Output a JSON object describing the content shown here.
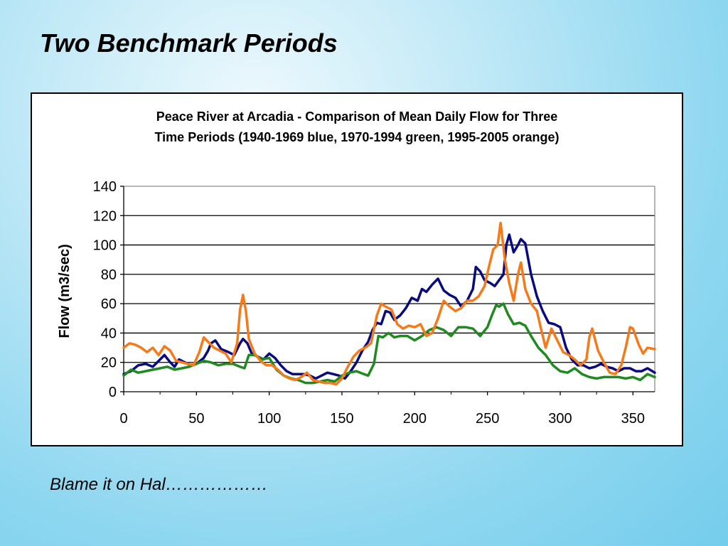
{
  "slide": {
    "title": "Two Benchmark Periods",
    "caption": "Blame it on Hal………………"
  },
  "colors": {
    "blue": "#0a0a80",
    "green": "#1f8a1f",
    "orange": "#f57a1a",
    "gridline": "#000000"
  },
  "chart_data": {
    "type": "line",
    "title_lines": [
      "Peace River at Arcadia - Comparison of Mean Daily Flow for Three",
      "Time Periods (1940-1969 blue, 1970-1994 green, 1995-2005 orange)"
    ],
    "xlabel": "",
    "ylabel": "Flow (m3/sec)",
    "xlim": [
      0,
      365
    ],
    "ylim": [
      0,
      140
    ],
    "xticks": [
      0,
      50,
      100,
      150,
      200,
      250,
      300,
      350
    ],
    "yticks": [
      0,
      20,
      40,
      60,
      80,
      100,
      120,
      140
    ],
    "grid": "horizontal",
    "legend": "none",
    "series": [
      {
        "color_key": "blue",
        "points": [
          [
            0,
            12
          ],
          [
            5,
            14
          ],
          [
            10,
            18
          ],
          [
            15,
            19
          ],
          [
            20,
            17
          ],
          [
            25,
            22
          ],
          [
            28,
            25
          ],
          [
            32,
            20
          ],
          [
            35,
            17
          ],
          [
            38,
            22
          ],
          [
            42,
            20
          ],
          [
            46,
            18
          ],
          [
            50,
            19
          ],
          [
            55,
            23
          ],
          [
            58,
            28
          ],
          [
            60,
            33
          ],
          [
            63,
            35
          ],
          [
            67,
            29
          ],
          [
            72,
            27
          ],
          [
            76,
            25
          ],
          [
            80,
            33
          ],
          [
            82,
            36
          ],
          [
            85,
            33
          ],
          [
            88,
            26
          ],
          [
            92,
            24
          ],
          [
            96,
            22
          ],
          [
            100,
            26
          ],
          [
            104,
            23
          ],
          [
            108,
            18
          ],
          [
            112,
            14
          ],
          [
            116,
            12
          ],
          [
            120,
            12
          ],
          [
            124,
            12
          ],
          [
            128,
            11
          ],
          [
            132,
            9
          ],
          [
            136,
            11
          ],
          [
            140,
            13
          ],
          [
            144,
            12
          ],
          [
            148,
            11
          ],
          [
            152,
            9
          ],
          [
            156,
            14
          ],
          [
            160,
            20
          ],
          [
            164,
            28
          ],
          [
            168,
            34
          ],
          [
            171,
            42
          ],
          [
            174,
            47
          ],
          [
            177,
            46
          ],
          [
            180,
            55
          ],
          [
            183,
            54
          ],
          [
            186,
            49
          ],
          [
            190,
            52
          ],
          [
            194,
            57
          ],
          [
            198,
            64
          ],
          [
            202,
            62
          ],
          [
            205,
            70
          ],
          [
            208,
            68
          ],
          [
            212,
            73
          ],
          [
            216,
            77
          ],
          [
            220,
            69
          ],
          [
            224,
            66
          ],
          [
            228,
            64
          ],
          [
            232,
            58
          ],
          [
            236,
            62
          ],
          [
            240,
            70
          ],
          [
            242,
            85
          ],
          [
            245,
            82
          ],
          [
            248,
            76
          ],
          [
            252,
            74
          ],
          [
            255,
            72
          ],
          [
            258,
            76
          ],
          [
            261,
            80
          ],
          [
            263,
            100
          ],
          [
            265,
            107
          ],
          [
            268,
            95
          ],
          [
            271,
            100
          ],
          [
            273,
            104
          ],
          [
            276,
            101
          ],
          [
            280,
            80
          ],
          [
            284,
            65
          ],
          [
            288,
            55
          ],
          [
            292,
            47
          ],
          [
            296,
            46
          ],
          [
            300,
            44
          ],
          [
            304,
            30
          ],
          [
            308,
            22
          ],
          [
            312,
            18
          ],
          [
            316,
            18
          ],
          [
            320,
            16
          ],
          [
            324,
            17
          ],
          [
            328,
            19
          ],
          [
            332,
            17
          ],
          [
            336,
            16
          ],
          [
            340,
            14
          ],
          [
            344,
            16
          ],
          [
            348,
            16
          ],
          [
            352,
            14
          ],
          [
            356,
            14
          ],
          [
            360,
            16
          ],
          [
            365,
            13
          ]
        ]
      },
      {
        "color_key": "green",
        "points": [
          [
            0,
            11
          ],
          [
            5,
            15
          ],
          [
            10,
            13
          ],
          [
            15,
            14
          ],
          [
            20,
            15
          ],
          [
            25,
            16
          ],
          [
            30,
            17
          ],
          [
            35,
            15
          ],
          [
            40,
            16
          ],
          [
            45,
            17
          ],
          [
            50,
            19
          ],
          [
            55,
            21
          ],
          [
            60,
            20
          ],
          [
            65,
            18
          ],
          [
            70,
            19
          ],
          [
            75,
            19
          ],
          [
            80,
            17
          ],
          [
            83,
            16
          ],
          [
            86,
            25
          ],
          [
            90,
            25
          ],
          [
            95,
            22
          ],
          [
            100,
            23
          ],
          [
            105,
            15
          ],
          [
            110,
            11
          ],
          [
            115,
            9
          ],
          [
            120,
            8
          ],
          [
            125,
            6
          ],
          [
            130,
            6
          ],
          [
            135,
            7
          ],
          [
            140,
            8
          ],
          [
            145,
            7
          ],
          [
            150,
            11
          ],
          [
            155,
            13
          ],
          [
            160,
            14
          ],
          [
            165,
            12
          ],
          [
            168,
            11
          ],
          [
            172,
            19
          ],
          [
            175,
            38
          ],
          [
            178,
            37
          ],
          [
            182,
            40
          ],
          [
            186,
            37
          ],
          [
            190,
            38
          ],
          [
            195,
            38
          ],
          [
            200,
            35
          ],
          [
            205,
            38
          ],
          [
            210,
            42
          ],
          [
            215,
            44
          ],
          [
            220,
            42
          ],
          [
            225,
            38
          ],
          [
            230,
            44
          ],
          [
            235,
            44
          ],
          [
            240,
            43
          ],
          [
            245,
            38
          ],
          [
            250,
            44
          ],
          [
            253,
            52
          ],
          [
            256,
            59
          ],
          [
            258,
            58
          ],
          [
            261,
            60
          ],
          [
            264,
            53
          ],
          [
            268,
            46
          ],
          [
            272,
            47
          ],
          [
            276,
            45
          ],
          [
            280,
            38
          ],
          [
            285,
            30
          ],
          [
            290,
            25
          ],
          [
            295,
            18
          ],
          [
            300,
            14
          ],
          [
            305,
            13
          ],
          [
            310,
            16
          ],
          [
            315,
            12
          ],
          [
            320,
            10
          ],
          [
            325,
            9
          ],
          [
            330,
            10
          ],
          [
            335,
            10
          ],
          [
            340,
            10
          ],
          [
            345,
            9
          ],
          [
            350,
            10
          ],
          [
            355,
            8
          ],
          [
            360,
            12
          ],
          [
            365,
            10
          ]
        ]
      },
      {
        "color_key": "orange",
        "points": [
          [
            0,
            30
          ],
          [
            4,
            33
          ],
          [
            8,
            32
          ],
          [
            12,
            30
          ],
          [
            16,
            27
          ],
          [
            20,
            30
          ],
          [
            24,
            25
          ],
          [
            28,
            31
          ],
          [
            32,
            28
          ],
          [
            36,
            21
          ],
          [
            40,
            20
          ],
          [
            44,
            19
          ],
          [
            48,
            18
          ],
          [
            52,
            27
          ],
          [
            55,
            37
          ],
          [
            58,
            34
          ],
          [
            62,
            30
          ],
          [
            66,
            28
          ],
          [
            70,
            26
          ],
          [
            74,
            20
          ],
          [
            78,
            33
          ],
          [
            80,
            56
          ],
          [
            82,
            66
          ],
          [
            84,
            55
          ],
          [
            86,
            36
          ],
          [
            90,
            26
          ],
          [
            94,
            21
          ],
          [
            98,
            18
          ],
          [
            102,
            18
          ],
          [
            106,
            15
          ],
          [
            110,
            11
          ],
          [
            114,
            9
          ],
          [
            118,
            8
          ],
          [
            122,
            10
          ],
          [
            126,
            13
          ],
          [
            130,
            8
          ],
          [
            134,
            7
          ],
          [
            138,
            6
          ],
          [
            142,
            6
          ],
          [
            146,
            5
          ],
          [
            150,
            9
          ],
          [
            154,
            17
          ],
          [
            158,
            24
          ],
          [
            162,
            28
          ],
          [
            166,
            30
          ],
          [
            170,
            33
          ],
          [
            174,
            52
          ],
          [
            177,
            60
          ],
          [
            180,
            58
          ],
          [
            184,
            56
          ],
          [
            188,
            46
          ],
          [
            192,
            43
          ],
          [
            196,
            45
          ],
          [
            200,
            44
          ],
          [
            204,
            46
          ],
          [
            208,
            38
          ],
          [
            212,
            40
          ],
          [
            216,
            50
          ],
          [
            220,
            62
          ],
          [
            224,
            58
          ],
          [
            228,
            55
          ],
          [
            232,
            57
          ],
          [
            236,
            62
          ],
          [
            240,
            62
          ],
          [
            244,
            65
          ],
          [
            248,
            72
          ],
          [
            251,
            85
          ],
          [
            254,
            97
          ],
          [
            257,
            100
          ],
          [
            259,
            115
          ],
          [
            262,
            90
          ],
          [
            265,
            74
          ],
          [
            268,
            62
          ],
          [
            271,
            80
          ],
          [
            273,
            88
          ],
          [
            276,
            70
          ],
          [
            280,
            60
          ],
          [
            284,
            55
          ],
          [
            287,
            42
          ],
          [
            290,
            30
          ],
          [
            294,
            43
          ],
          [
            298,
            35
          ],
          [
            302,
            27
          ],
          [
            306,
            25
          ],
          [
            310,
            22
          ],
          [
            314,
            18
          ],
          [
            318,
            22
          ],
          [
            320,
            37
          ],
          [
            322,
            43
          ],
          [
            326,
            28
          ],
          [
            330,
            20
          ],
          [
            334,
            13
          ],
          [
            338,
            12
          ],
          [
            342,
            18
          ],
          [
            345,
            30
          ],
          [
            348,
            44
          ],
          [
            350,
            43
          ],
          [
            354,
            32
          ],
          [
            357,
            26
          ],
          [
            360,
            30
          ],
          [
            365,
            29
          ]
        ]
      }
    ]
  }
}
